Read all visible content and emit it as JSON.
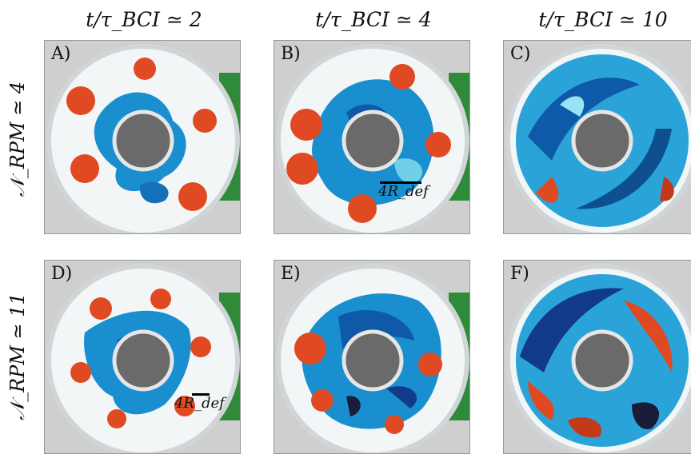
{
  "columns": [
    "t/τ_BCI ≃ 2",
    "t/τ_BCI ≃ 4",
    "t/τ_BCI ≃ 10"
  ],
  "rows": [
    "𝒩_RPM ≃ 4",
    "𝒩_RPM ≃ 11"
  ],
  "panels": [
    {
      "label": "A)",
      "scale": ""
    },
    {
      "label": "B)",
      "scale": "4R_def"
    },
    {
      "label": "C)",
      "scale": ""
    },
    {
      "label": "D)",
      "scale": "4R_def"
    },
    {
      "label": "E)",
      "scale": ""
    },
    {
      "label": "F)",
      "scale": ""
    }
  ],
  "colors": {
    "red_dye": "#e04a22",
    "blue_dye": "#1a8fd0",
    "dark_blue": "#123a8a",
    "water": "#f4f7f8",
    "bg_green": "#2f8a3a",
    "bg_gray": "#c9c9c9"
  }
}
